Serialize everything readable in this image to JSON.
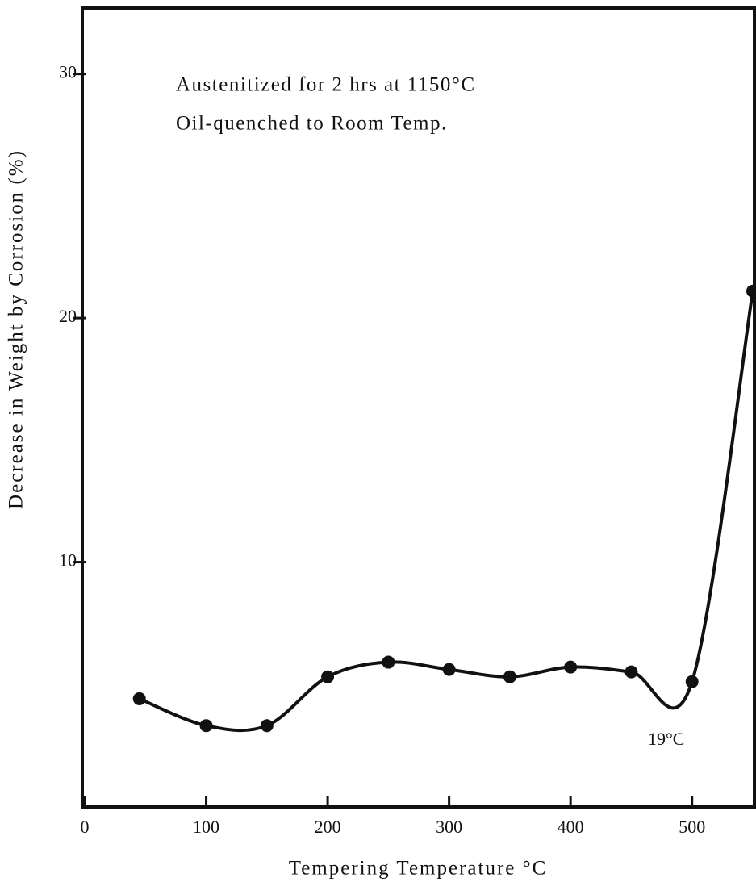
{
  "chart_data": {
    "type": "line",
    "xlabel": "Tempering Temperature °C",
    "ylabel": "Decrease in Weight by Corrosion (%)",
    "annotations": [
      "Austenitized for 2 hrs at 1150°C",
      "Oil-quenched to Room Temp.",
      "19°C"
    ],
    "x": [
      45,
      100,
      150,
      200,
      250,
      300,
      350,
      400,
      450,
      500,
      550
    ],
    "series": [
      {
        "color": "#111111",
        "values": [
          4.4,
          3.3,
          3.3,
          5.3,
          5.9,
          5.6,
          5.3,
          5.7,
          5.5,
          5.1,
          21.1
        ]
      }
    ],
    "xlim": [
      0,
      552
    ],
    "ylim": [
      0,
      32.7
    ],
    "xticks": [
      0,
      100,
      200,
      300,
      400,
      500
    ],
    "yticks": [
      10,
      20,
      30
    ]
  }
}
